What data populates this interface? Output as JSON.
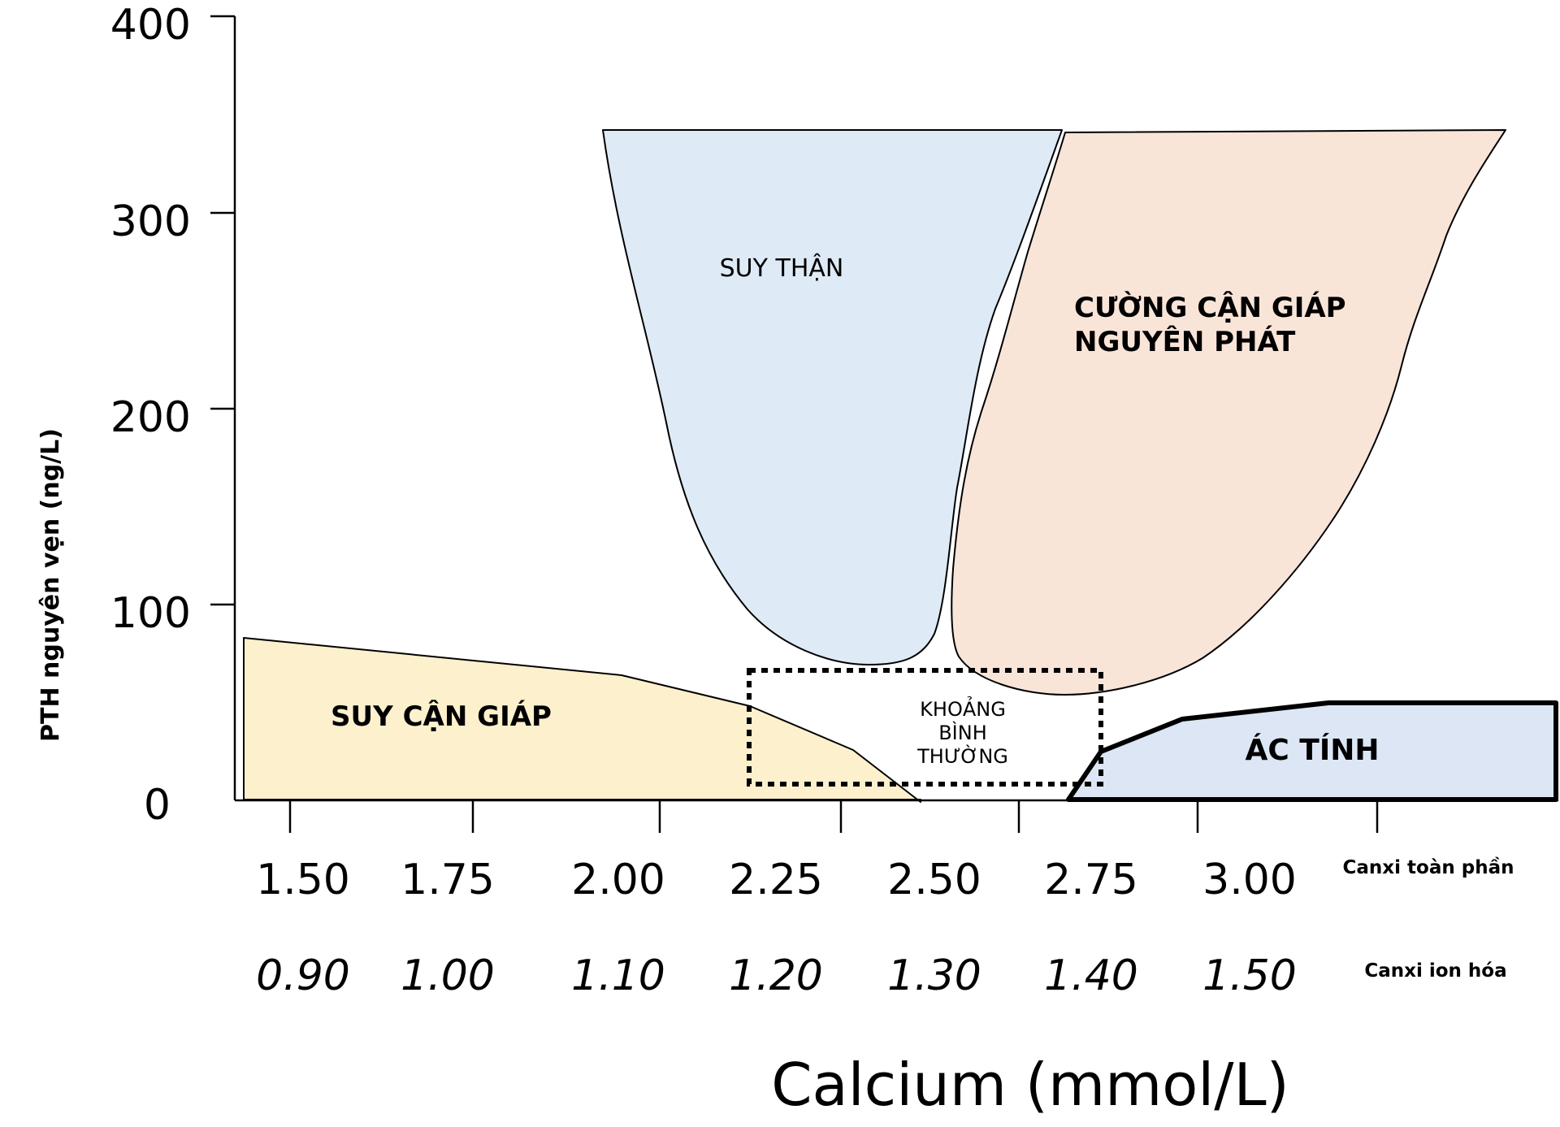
{
  "chart_data": {
    "type": "diagram-regions",
    "xlabel": "Calcium (mmol/L)",
    "ylabel": "PTH nguyên vẹn (ng/L)",
    "ylim": [
      0,
      400
    ],
    "y_ticks": [
      "400",
      "300",
      "200",
      "100",
      "0"
    ],
    "x_rows": [
      {
        "label": "Canxi toàn phần",
        "ticks": [
          "1.50",
          "1.75",
          "2.00",
          "2.25",
          "2.50",
          "2.75",
          "3.00"
        ]
      },
      {
        "label": "Canxi ion hóa",
        "ticks": [
          "0.90",
          "1.00",
          "1.10",
          "1.20",
          "1.30",
          "1.40",
          "1.50"
        ]
      }
    ],
    "regions": [
      {
        "name": "SUY THẬN",
        "color": "#deeaf5"
      },
      {
        "name": "CƯỜNG CẬN GIÁP NGUYÊN PHÁT",
        "lines": [
          "CƯỜNG CẬN GIÁP",
          "NGUYÊN PHÁT"
        ],
        "color": "#f9e4d8"
      },
      {
        "name": "SUY CẬN GIÁP",
        "color": "#fdf0cd"
      },
      {
        "name": "KHOẢNG BÌNH THƯỜNG",
        "lines": [
          "KHOẢNG",
          "BÌNH",
          "THƯỜNG"
        ],
        "color": "#ffffff"
      },
      {
        "name": "ÁC TÍNH",
        "color": "#dce6f4"
      }
    ]
  }
}
